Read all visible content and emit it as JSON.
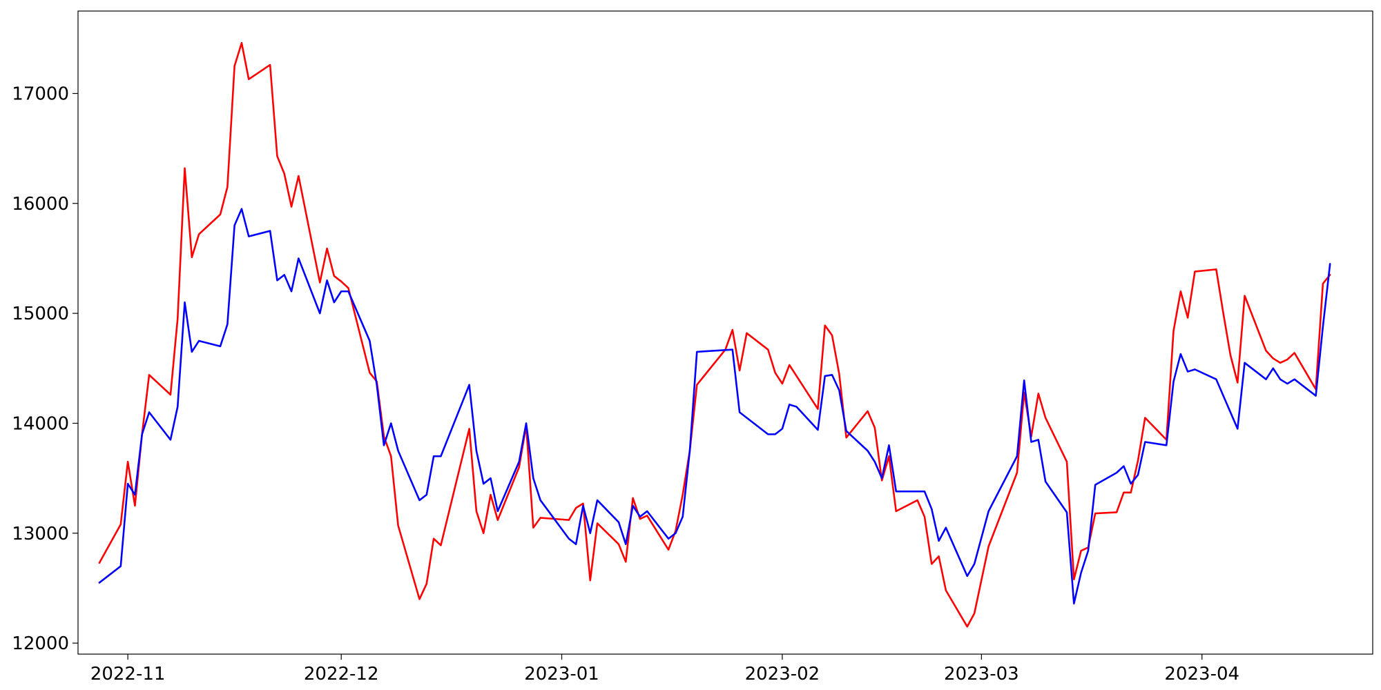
{
  "chart_data": {
    "type": "line",
    "title": "",
    "xlabel": "",
    "ylabel": "",
    "x_axis_type": "date",
    "xlim": [
      "2022-10-25",
      "2023-04-25"
    ],
    "ylim": [
      11900,
      17750
    ],
    "grid": false,
    "legend": "none",
    "x_ticks": [
      {
        "date": "2022-11-01",
        "label": "2022-11"
      },
      {
        "date": "2022-12-01",
        "label": "2022-12"
      },
      {
        "date": "2023-01-01",
        "label": "2023-01"
      },
      {
        "date": "2023-02-01",
        "label": "2023-02"
      },
      {
        "date": "2023-03-01",
        "label": "2023-03"
      },
      {
        "date": "2023-04-01",
        "label": "2023-04"
      }
    ],
    "y_ticks": [
      {
        "value": 12000,
        "label": "12000"
      },
      {
        "value": 13000,
        "label": "13000"
      },
      {
        "value": 14000,
        "label": "14000"
      },
      {
        "value": 15000,
        "label": "15000"
      },
      {
        "value": 16000,
        "label": "16000"
      },
      {
        "value": 17000,
        "label": "17000"
      }
    ],
    "series": [
      {
        "color": "#ff0000",
        "points": [
          [
            "2022-10-28",
            12730
          ],
          [
            "2022-10-31",
            13080
          ],
          [
            "2022-11-01",
            13650
          ],
          [
            "2022-11-02",
            13250
          ],
          [
            "2022-11-03",
            13900
          ],
          [
            "2022-11-04",
            14440
          ],
          [
            "2022-11-07",
            14260
          ],
          [
            "2022-11-08",
            14950
          ],
          [
            "2022-11-09",
            16320
          ],
          [
            "2022-11-10",
            15510
          ],
          [
            "2022-11-11",
            15720
          ],
          [
            "2022-11-14",
            15900
          ],
          [
            "2022-11-15",
            16150
          ],
          [
            "2022-11-16",
            17250
          ],
          [
            "2022-11-17",
            17460
          ],
          [
            "2022-11-18",
            17130
          ],
          [
            "2022-11-21",
            17260
          ],
          [
            "2022-11-22",
            16430
          ],
          [
            "2022-11-23",
            16270
          ],
          [
            "2022-11-24",
            15970
          ],
          [
            "2022-11-25",
            16250
          ],
          [
            "2022-11-28",
            15280
          ],
          [
            "2022-11-29",
            15590
          ],
          [
            "2022-11-30",
            15340
          ],
          [
            "2022-12-01",
            15290
          ],
          [
            "2022-12-02",
            15230
          ],
          [
            "2022-12-05",
            14460
          ],
          [
            "2022-12-06",
            14380
          ],
          [
            "2022-12-07",
            13880
          ],
          [
            "2022-12-08",
            13700
          ],
          [
            "2022-12-09",
            13070
          ],
          [
            "2022-12-12",
            12400
          ],
          [
            "2022-12-13",
            12540
          ],
          [
            "2022-12-14",
            12950
          ],
          [
            "2022-12-15",
            12890
          ],
          [
            "2022-12-19",
            13950
          ],
          [
            "2022-12-20",
            13200
          ],
          [
            "2022-12-21",
            13000
          ],
          [
            "2022-12-22",
            13350
          ],
          [
            "2022-12-23",
            13120
          ],
          [
            "2022-12-26",
            13600
          ],
          [
            "2022-12-27",
            13980
          ],
          [
            "2022-12-28",
            13050
          ],
          [
            "2022-12-29",
            13140
          ],
          [
            "2023-01-02",
            13120
          ],
          [
            "2023-01-03",
            13230
          ],
          [
            "2023-01-04",
            13270
          ],
          [
            "2023-01-05",
            12570
          ],
          [
            "2023-01-06",
            13090
          ],
          [
            "2023-01-09",
            12900
          ],
          [
            "2023-01-10",
            12740
          ],
          [
            "2023-01-11",
            13320
          ],
          [
            "2023-01-12",
            13130
          ],
          [
            "2023-01-13",
            13160
          ],
          [
            "2023-01-16",
            12850
          ],
          [
            "2023-01-17",
            13020
          ],
          [
            "2023-01-18",
            13350
          ],
          [
            "2023-01-19",
            13750
          ],
          [
            "2023-01-20",
            14350
          ],
          [
            "2023-01-24",
            14670
          ],
          [
            "2023-01-25",
            14850
          ],
          [
            "2023-01-26",
            14480
          ],
          [
            "2023-01-27",
            14820
          ],
          [
            "2023-01-30",
            14670
          ],
          [
            "2023-01-31",
            14460
          ],
          [
            "2023-02-01",
            14360
          ],
          [
            "2023-02-02",
            14530
          ],
          [
            "2023-02-06",
            14130
          ],
          [
            "2023-02-07",
            14890
          ],
          [
            "2023-02-08",
            14800
          ],
          [
            "2023-02-09",
            14450
          ],
          [
            "2023-02-10",
            13870
          ],
          [
            "2023-02-13",
            14110
          ],
          [
            "2023-02-14",
            13960
          ],
          [
            "2023-02-15",
            13480
          ],
          [
            "2023-02-16",
            13700
          ],
          [
            "2023-02-17",
            13200
          ],
          [
            "2023-02-20",
            13300
          ],
          [
            "2023-02-21",
            13150
          ],
          [
            "2023-02-22",
            12720
          ],
          [
            "2023-02-23",
            12790
          ],
          [
            "2023-02-24",
            12480
          ],
          [
            "2023-02-27",
            12150
          ],
          [
            "2023-02-28",
            12270
          ],
          [
            "2023-03-02",
            12880
          ],
          [
            "2023-03-06",
            13550
          ],
          [
            "2023-03-07",
            14280
          ],
          [
            "2023-03-08",
            13880
          ],
          [
            "2023-03-09",
            14270
          ],
          [
            "2023-03-10",
            14050
          ],
          [
            "2023-03-13",
            13650
          ],
          [
            "2023-03-14",
            12580
          ],
          [
            "2023-03-15",
            12840
          ],
          [
            "2023-03-16",
            12870
          ],
          [
            "2023-03-17",
            13180
          ],
          [
            "2023-03-20",
            13190
          ],
          [
            "2023-03-21",
            13370
          ],
          [
            "2023-03-22",
            13370
          ],
          [
            "2023-03-23",
            13660
          ],
          [
            "2023-03-24",
            14050
          ],
          [
            "2023-03-27",
            13850
          ],
          [
            "2023-03-28",
            14840
          ],
          [
            "2023-03-29",
            15200
          ],
          [
            "2023-03-30",
            14960
          ],
          [
            "2023-03-31",
            15380
          ],
          [
            "2023-04-03",
            15400
          ],
          [
            "2023-04-04",
            15000
          ],
          [
            "2023-04-05",
            14620
          ],
          [
            "2023-04-06",
            14370
          ],
          [
            "2023-04-07",
            15160
          ],
          [
            "2023-04-10",
            14660
          ],
          [
            "2023-04-11",
            14590
          ],
          [
            "2023-04-12",
            14550
          ],
          [
            "2023-04-13",
            14580
          ],
          [
            "2023-04-14",
            14640
          ],
          [
            "2023-04-17",
            14310
          ],
          [
            "2023-04-18",
            15270
          ],
          [
            "2023-04-19",
            15350
          ]
        ]
      },
      {
        "color": "#0000ff",
        "points": [
          [
            "2022-10-28",
            12550
          ],
          [
            "2022-10-31",
            12700
          ],
          [
            "2022-11-01",
            13450
          ],
          [
            "2022-11-02",
            13350
          ],
          [
            "2022-11-03",
            13900
          ],
          [
            "2022-11-04",
            14100
          ],
          [
            "2022-11-07",
            13850
          ],
          [
            "2022-11-08",
            14150
          ],
          [
            "2022-11-09",
            15100
          ],
          [
            "2022-11-10",
            14650
          ],
          [
            "2022-11-11",
            14750
          ],
          [
            "2022-11-14",
            14700
          ],
          [
            "2022-11-15",
            14900
          ],
          [
            "2022-11-16",
            15800
          ],
          [
            "2022-11-17",
            15950
          ],
          [
            "2022-11-18",
            15700
          ],
          [
            "2022-11-21",
            15750
          ],
          [
            "2022-11-22",
            15300
          ],
          [
            "2022-11-23",
            15350
          ],
          [
            "2022-11-24",
            15200
          ],
          [
            "2022-11-25",
            15500
          ],
          [
            "2022-11-28",
            15000
          ],
          [
            "2022-11-29",
            15300
          ],
          [
            "2022-11-30",
            15100
          ],
          [
            "2022-12-01",
            15200
          ],
          [
            "2022-12-02",
            15200
          ],
          [
            "2022-12-05",
            14750
          ],
          [
            "2022-12-06",
            14350
          ],
          [
            "2022-12-07",
            13800
          ],
          [
            "2022-12-08",
            14000
          ],
          [
            "2022-12-09",
            13750
          ],
          [
            "2022-12-12",
            13300
          ],
          [
            "2022-12-13",
            13350
          ],
          [
            "2022-12-14",
            13700
          ],
          [
            "2022-12-15",
            13700
          ],
          [
            "2022-12-19",
            14350
          ],
          [
            "2022-12-20",
            13750
          ],
          [
            "2022-12-21",
            13450
          ],
          [
            "2022-12-22",
            13500
          ],
          [
            "2022-12-23",
            13200
          ],
          [
            "2022-12-26",
            13650
          ],
          [
            "2022-12-27",
            14000
          ],
          [
            "2022-12-28",
            13500
          ],
          [
            "2022-12-29",
            13300
          ],
          [
            "2023-01-02",
            12950
          ],
          [
            "2023-01-03",
            12900
          ],
          [
            "2023-01-04",
            13250
          ],
          [
            "2023-01-05",
            13000
          ],
          [
            "2023-01-06",
            13300
          ],
          [
            "2023-01-09",
            13100
          ],
          [
            "2023-01-10",
            12900
          ],
          [
            "2023-01-11",
            13250
          ],
          [
            "2023-01-12",
            13150
          ],
          [
            "2023-01-13",
            13200
          ],
          [
            "2023-01-16",
            12950
          ],
          [
            "2023-01-17",
            13000
          ],
          [
            "2023-01-18",
            13150
          ],
          [
            "2023-01-19",
            13750
          ],
          [
            "2023-01-20",
            14650
          ],
          [
            "2023-01-25",
            14670
          ],
          [
            "2023-01-26",
            14100
          ],
          [
            "2023-01-30",
            13900
          ],
          [
            "2023-01-31",
            13900
          ],
          [
            "2023-02-01",
            13950
          ],
          [
            "2023-02-02",
            14170
          ],
          [
            "2023-02-03",
            14150
          ],
          [
            "2023-02-06",
            13940
          ],
          [
            "2023-02-07",
            14430
          ],
          [
            "2023-02-08",
            14440
          ],
          [
            "2023-02-09",
            14300
          ],
          [
            "2023-02-10",
            13930
          ],
          [
            "2023-02-13",
            13750
          ],
          [
            "2023-02-14",
            13650
          ],
          [
            "2023-02-15",
            13500
          ],
          [
            "2023-02-16",
            13800
          ],
          [
            "2023-02-17",
            13380
          ],
          [
            "2023-02-21",
            13380
          ],
          [
            "2023-02-22",
            13220
          ],
          [
            "2023-02-23",
            12930
          ],
          [
            "2023-02-24",
            13050
          ],
          [
            "2023-02-27",
            12610
          ],
          [
            "2023-02-28",
            12720
          ],
          [
            "2023-03-02",
            13200
          ],
          [
            "2023-03-06",
            13700
          ],
          [
            "2023-03-07",
            14390
          ],
          [
            "2023-03-08",
            13830
          ],
          [
            "2023-03-09",
            13850
          ],
          [
            "2023-03-10",
            13470
          ],
          [
            "2023-03-13",
            13190
          ],
          [
            "2023-03-14",
            12360
          ],
          [
            "2023-03-15",
            12640
          ],
          [
            "2023-03-16",
            12840
          ],
          [
            "2023-03-17",
            13440
          ],
          [
            "2023-03-20",
            13550
          ],
          [
            "2023-03-21",
            13610
          ],
          [
            "2023-03-22",
            13450
          ],
          [
            "2023-03-23",
            13530
          ],
          [
            "2023-03-24",
            13830
          ],
          [
            "2023-03-27",
            13800
          ],
          [
            "2023-03-28",
            14380
          ],
          [
            "2023-03-29",
            14630
          ],
          [
            "2023-03-30",
            14470
          ],
          [
            "2023-03-31",
            14490
          ],
          [
            "2023-04-03",
            14400
          ],
          [
            "2023-04-06",
            13950
          ],
          [
            "2023-04-07",
            14550
          ],
          [
            "2023-04-10",
            14400
          ],
          [
            "2023-04-11",
            14500
          ],
          [
            "2023-04-12",
            14400
          ],
          [
            "2023-04-13",
            14360
          ],
          [
            "2023-04-14",
            14400
          ],
          [
            "2023-04-17",
            14250
          ],
          [
            "2023-04-18",
            14880
          ],
          [
            "2023-04-19",
            15450
          ]
        ]
      }
    ]
  }
}
